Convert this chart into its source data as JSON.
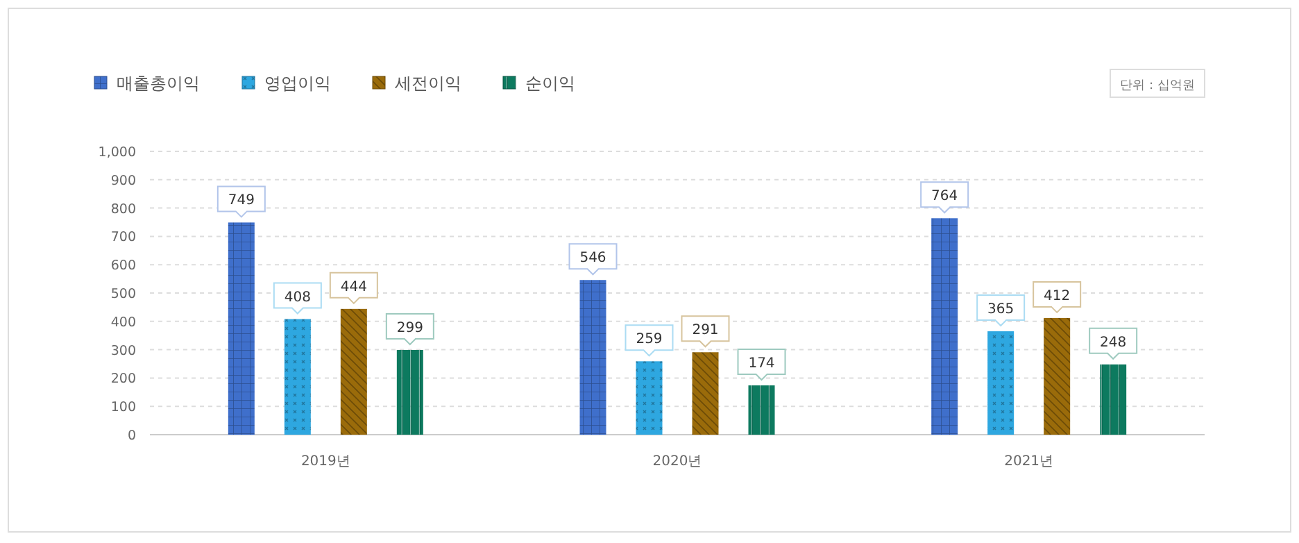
{
  "chart_data": {
    "type": "bar",
    "categories": [
      "2019년",
      "2020년",
      "2021년"
    ],
    "series": [
      {
        "name": "매출총이익",
        "color": "#3f6fcb",
        "values": [
          749,
          546,
          764
        ]
      },
      {
        "name": "영업이익",
        "color": "#2ea7e0",
        "values": [
          408,
          259,
          365
        ]
      },
      {
        "name": "세전이익",
        "color": "#9a6b0a",
        "values": [
          444,
          291,
          412
        ]
      },
      {
        "name": "순이익",
        "color": "#0d7a5f",
        "values": [
          299,
          174,
          248
        ]
      }
    ],
    "ylim": [
      0,
      1000
    ],
    "yticks": [
      0,
      100,
      200,
      300,
      400,
      500,
      600,
      700,
      800,
      900,
      {
        "value": 1000,
        "label": "1,000"
      }
    ],
    "grid": "y",
    "legend": "top left",
    "data_labels": true,
    "annotations": [
      "단위 : 십억원"
    ]
  }
}
